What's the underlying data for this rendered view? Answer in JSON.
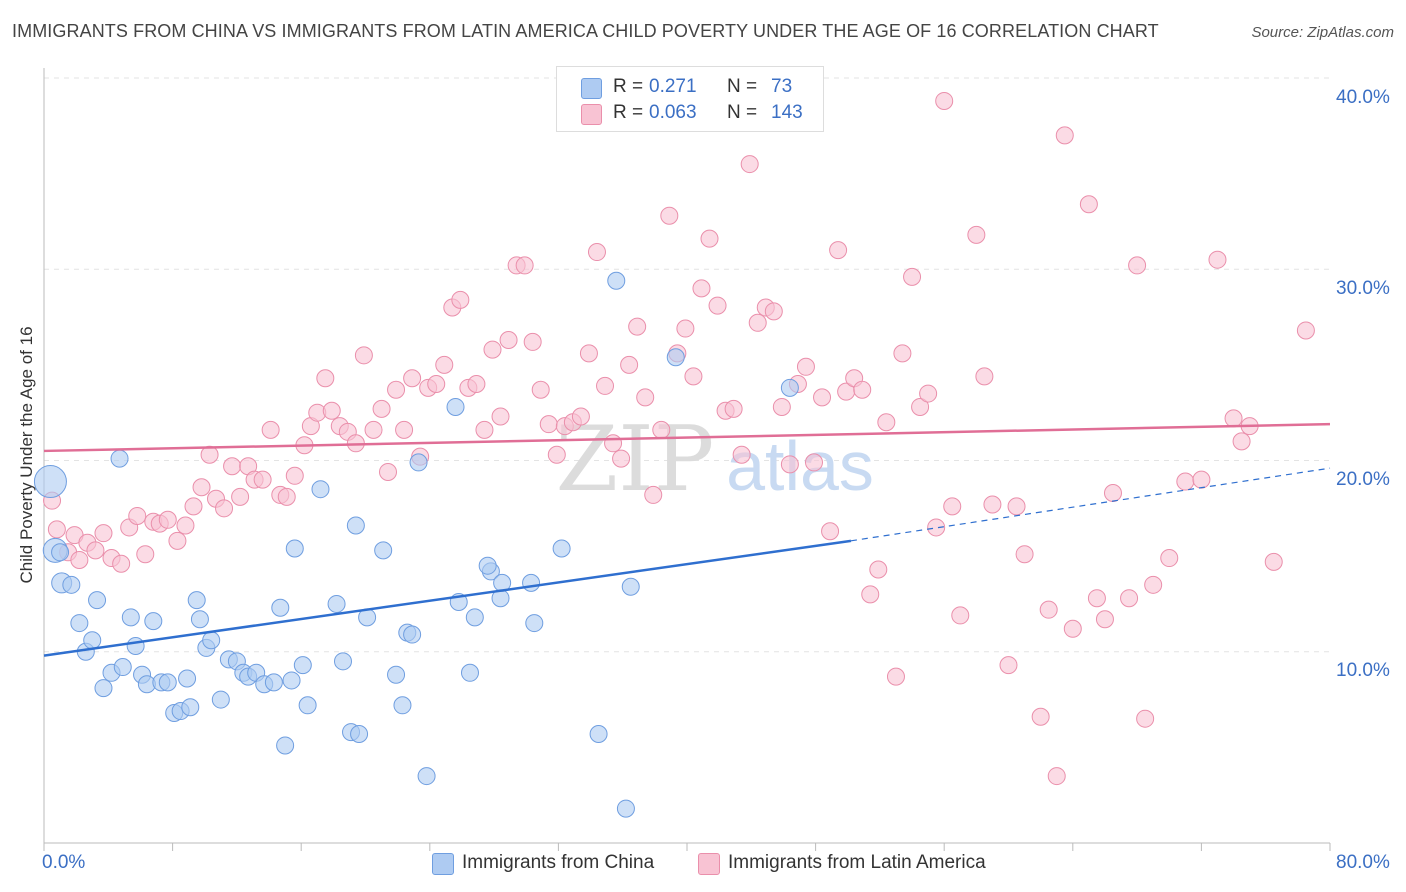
{
  "title": "IMMIGRANTS FROM CHINA VS IMMIGRANTS FROM LATIN AMERICA CHILD POVERTY UNDER THE AGE OF 16 CORRELATION CHART",
  "source": "Source: ZipAtlas.com",
  "watermark": {
    "zip": "ZIP",
    "atlas": "atlas"
  },
  "legend": {
    "china": {
      "r_label": "R =",
      "r_value": "0.271",
      "n_label": "N =",
      "n_value": "73"
    },
    "latin": {
      "r_label": "R =",
      "r_value": "0.063",
      "n_label": "N =",
      "n_value": "143"
    }
  },
  "colors": {
    "china_fill": "#aecbf2",
    "china_stroke": "#6f9ee0",
    "china_line": "#2f6fcf",
    "latin_fill": "#f8c3d3",
    "latin_stroke": "#ea8fab",
    "latin_line": "#e06e96",
    "tick_text": "#3b6fc4",
    "grid": "#e3e3e3"
  },
  "chart_data": {
    "type": "scatter",
    "title": "IMMIGRANTS FROM CHINA VS IMMIGRANTS FROM LATIN AMERICA CHILD POVERTY UNDER THE AGE OF 16 CORRELATION CHART",
    "xlabel": "",
    "ylabel": "Child Poverty Under the Age of 16",
    "xlim": [
      0,
      80
    ],
    "ylim": [
      0,
      40
    ],
    "x_tick_labels": [
      "0.0%",
      "80.0%"
    ],
    "y_tick_labels": [
      "10.0%",
      "20.0%",
      "30.0%",
      "40.0%"
    ],
    "y_ticks": [
      10,
      20,
      30,
      40
    ],
    "grid": true,
    "legend_position": "top-center",
    "series": [
      {
        "name": "Immigrants from China",
        "r": 0.271,
        "n": 73,
        "trend": {
          "x_solid": [
            0,
            50.2
          ],
          "y_solid": [
            9.8,
            15.8
          ],
          "x_dashed": [
            50.2,
            80
          ],
          "y_dashed": [
            15.8,
            19.6
          ]
        },
        "points": [
          [
            0.4,
            18.9
          ],
          [
            0.7,
            15.3
          ],
          [
            1.0,
            15.2
          ],
          [
            1.1,
            13.6
          ],
          [
            1.7,
            13.5
          ],
          [
            2.2,
            11.5
          ],
          [
            2.6,
            10.0
          ],
          [
            3.0,
            10.6
          ],
          [
            3.3,
            12.7
          ],
          [
            3.7,
            8.1
          ],
          [
            4.2,
            8.9
          ],
          [
            4.9,
            9.2
          ],
          [
            5.4,
            11.8
          ],
          [
            5.7,
            10.3
          ],
          [
            6.1,
            8.8
          ],
          [
            6.4,
            8.3
          ],
          [
            6.8,
            11.6
          ],
          [
            7.3,
            8.4
          ],
          [
            7.7,
            8.4
          ],
          [
            8.1,
            6.8
          ],
          [
            8.5,
            6.9
          ],
          [
            8.9,
            8.6
          ],
          [
            9.1,
            7.1
          ],
          [
            9.5,
            12.7
          ],
          [
            9.7,
            11.7
          ],
          [
            10.1,
            10.2
          ],
          [
            10.4,
            10.6
          ],
          [
            11.0,
            7.5
          ],
          [
            11.5,
            9.6
          ],
          [
            12.0,
            9.5
          ],
          [
            12.4,
            8.9
          ],
          [
            12.7,
            8.7
          ],
          [
            13.2,
            8.9
          ],
          [
            13.7,
            8.3
          ],
          [
            14.3,
            8.4
          ],
          [
            14.7,
            12.3
          ],
          [
            15.0,
            5.1
          ],
          [
            15.4,
            8.5
          ],
          [
            15.6,
            15.4
          ],
          [
            16.1,
            9.3
          ],
          [
            16.4,
            7.2
          ],
          [
            17.2,
            18.5
          ],
          [
            18.2,
            12.5
          ],
          [
            18.6,
            9.5
          ],
          [
            19.1,
            5.8
          ],
          [
            19.4,
            16.6
          ],
          [
            19.6,
            5.7
          ],
          [
            20.1,
            11.8
          ],
          [
            21.1,
            15.3
          ],
          [
            21.9,
            8.8
          ],
          [
            22.3,
            7.2
          ],
          [
            22.6,
            11.0
          ],
          [
            22.9,
            10.9
          ],
          [
            23.3,
            19.9
          ],
          [
            23.8,
            3.5
          ],
          [
            25.6,
            22.8
          ],
          [
            25.8,
            12.6
          ],
          [
            26.5,
            8.9
          ],
          [
            26.8,
            11.8
          ],
          [
            27.8,
            14.2
          ],
          [
            27.6,
            14.5
          ],
          [
            28.4,
            12.8
          ],
          [
            28.5,
            13.6
          ],
          [
            30.3,
            13.6
          ],
          [
            30.5,
            11.5
          ],
          [
            32.2,
            15.4
          ],
          [
            34.5,
            5.7
          ],
          [
            35.6,
            29.4
          ],
          [
            36.2,
            1.8
          ],
          [
            36.5,
            13.4
          ],
          [
            39.3,
            25.4
          ],
          [
            46.4,
            23.8
          ],
          [
            4.7,
            20.1
          ]
        ]
      },
      {
        "name": "Immigrants from Latin America",
        "r": 0.063,
        "n": 143,
        "trend": {
          "x_solid": [
            0,
            80
          ],
          "y_solid": [
            20.5,
            21.9
          ]
        },
        "points": [
          [
            0.5,
            17.9
          ],
          [
            0.8,
            16.4
          ],
          [
            1.5,
            15.2
          ],
          [
            1.9,
            16.1
          ],
          [
            2.2,
            14.8
          ],
          [
            2.7,
            15.7
          ],
          [
            3.2,
            15.3
          ],
          [
            3.7,
            16.2
          ],
          [
            4.2,
            14.9
          ],
          [
            4.8,
            14.6
          ],
          [
            5.3,
            16.5
          ],
          [
            5.8,
            17.1
          ],
          [
            6.3,
            15.1
          ],
          [
            6.8,
            16.8
          ],
          [
            7.2,
            16.7
          ],
          [
            7.7,
            16.9
          ],
          [
            8.3,
            15.8
          ],
          [
            8.8,
            16.6
          ],
          [
            9.3,
            17.6
          ],
          [
            9.8,
            18.6
          ],
          [
            10.3,
            20.3
          ],
          [
            10.7,
            18.0
          ],
          [
            11.2,
            17.5
          ],
          [
            11.7,
            19.7
          ],
          [
            12.2,
            18.1
          ],
          [
            12.7,
            19.7
          ],
          [
            13.1,
            19.0
          ],
          [
            13.6,
            19.0
          ],
          [
            14.1,
            21.6
          ],
          [
            14.7,
            18.2
          ],
          [
            15.1,
            18.1
          ],
          [
            15.6,
            19.2
          ],
          [
            16.2,
            20.8
          ],
          [
            16.6,
            21.8
          ],
          [
            17.0,
            22.5
          ],
          [
            17.5,
            24.3
          ],
          [
            17.9,
            22.6
          ],
          [
            18.4,
            21.8
          ],
          [
            18.9,
            21.5
          ],
          [
            19.4,
            20.9
          ],
          [
            19.9,
            25.5
          ],
          [
            20.5,
            21.6
          ],
          [
            21.0,
            22.7
          ],
          [
            21.4,
            19.4
          ],
          [
            21.9,
            23.7
          ],
          [
            22.4,
            21.6
          ],
          [
            22.9,
            24.3
          ],
          [
            23.4,
            20.2
          ],
          [
            23.9,
            23.8
          ],
          [
            24.4,
            24.0
          ],
          [
            24.9,
            25.0
          ],
          [
            25.4,
            28.0
          ],
          [
            25.9,
            28.4
          ],
          [
            26.4,
            23.8
          ],
          [
            26.9,
            24.0
          ],
          [
            27.4,
            21.6
          ],
          [
            27.9,
            25.8
          ],
          [
            28.4,
            22.3
          ],
          [
            28.9,
            26.3
          ],
          [
            29.4,
            30.2
          ],
          [
            29.9,
            30.2
          ],
          [
            30.4,
            26.2
          ],
          [
            30.9,
            23.7
          ],
          [
            31.4,
            21.9
          ],
          [
            31.9,
            20.3
          ],
          [
            32.4,
            21.8
          ],
          [
            32.9,
            22.0
          ],
          [
            33.4,
            22.3
          ],
          [
            33.9,
            25.6
          ],
          [
            34.4,
            30.9
          ],
          [
            34.9,
            23.9
          ],
          [
            35.4,
            20.9
          ],
          [
            35.9,
            20.1
          ],
          [
            36.4,
            25.0
          ],
          [
            36.9,
            27.0
          ],
          [
            37.4,
            23.3
          ],
          [
            37.9,
            18.2
          ],
          [
            38.4,
            21.6
          ],
          [
            38.9,
            32.8
          ],
          [
            39.4,
            25.6
          ],
          [
            39.9,
            26.9
          ],
          [
            40.4,
            24.4
          ],
          [
            40.9,
            29.0
          ],
          [
            41.4,
            31.6
          ],
          [
            41.9,
            28.1
          ],
          [
            42.4,
            22.6
          ],
          [
            42.9,
            22.7
          ],
          [
            43.4,
            20.3
          ],
          [
            43.9,
            35.5
          ],
          [
            44.4,
            27.2
          ],
          [
            44.9,
            28.0
          ],
          [
            45.4,
            27.8
          ],
          [
            45.9,
            22.8
          ],
          [
            46.4,
            19.8
          ],
          [
            46.9,
            24.0
          ],
          [
            47.4,
            24.9
          ],
          [
            47.9,
            19.9
          ],
          [
            48.4,
            23.3
          ],
          [
            48.9,
            16.3
          ],
          [
            49.4,
            31.0
          ],
          [
            49.9,
            23.6
          ],
          [
            50.4,
            24.3
          ],
          [
            50.9,
            23.7
          ],
          [
            51.4,
            13.0
          ],
          [
            51.9,
            14.3
          ],
          [
            52.4,
            22.0
          ],
          [
            53.0,
            8.7
          ],
          [
            53.4,
            25.6
          ],
          [
            54.0,
            29.6
          ],
          [
            54.5,
            22.8
          ],
          [
            55.0,
            23.5
          ],
          [
            55.5,
            16.5
          ],
          [
            56.0,
            38.8
          ],
          [
            56.5,
            17.6
          ],
          [
            57.0,
            11.9
          ],
          [
            58.0,
            31.8
          ],
          [
            58.5,
            24.4
          ],
          [
            59.0,
            17.7
          ],
          [
            60.0,
            9.3
          ],
          [
            60.5,
            17.6
          ],
          [
            61.0,
            15.1
          ],
          [
            62.0,
            6.6
          ],
          [
            62.5,
            12.2
          ],
          [
            63.0,
            3.5
          ],
          [
            63.5,
            37.0
          ],
          [
            64.0,
            11.2
          ],
          [
            65.0,
            33.4
          ],
          [
            65.5,
            12.8
          ],
          [
            66.0,
            11.7
          ],
          [
            66.5,
            18.3
          ],
          [
            67.5,
            12.8
          ],
          [
            68.0,
            30.2
          ],
          [
            68.5,
            6.5
          ],
          [
            69.0,
            13.5
          ],
          [
            70.0,
            14.9
          ],
          [
            71.0,
            18.9
          ],
          [
            72.0,
            19.0
          ],
          [
            73.0,
            30.5
          ],
          [
            74.0,
            22.2
          ],
          [
            74.5,
            21.0
          ],
          [
            75.0,
            21.8
          ],
          [
            76.5,
            14.7
          ],
          [
            78.5,
            26.8
          ]
        ]
      }
    ]
  },
  "bottom_legend": {
    "china_label": "Immigrants from China",
    "latin_label": "Immigrants from Latin America"
  }
}
